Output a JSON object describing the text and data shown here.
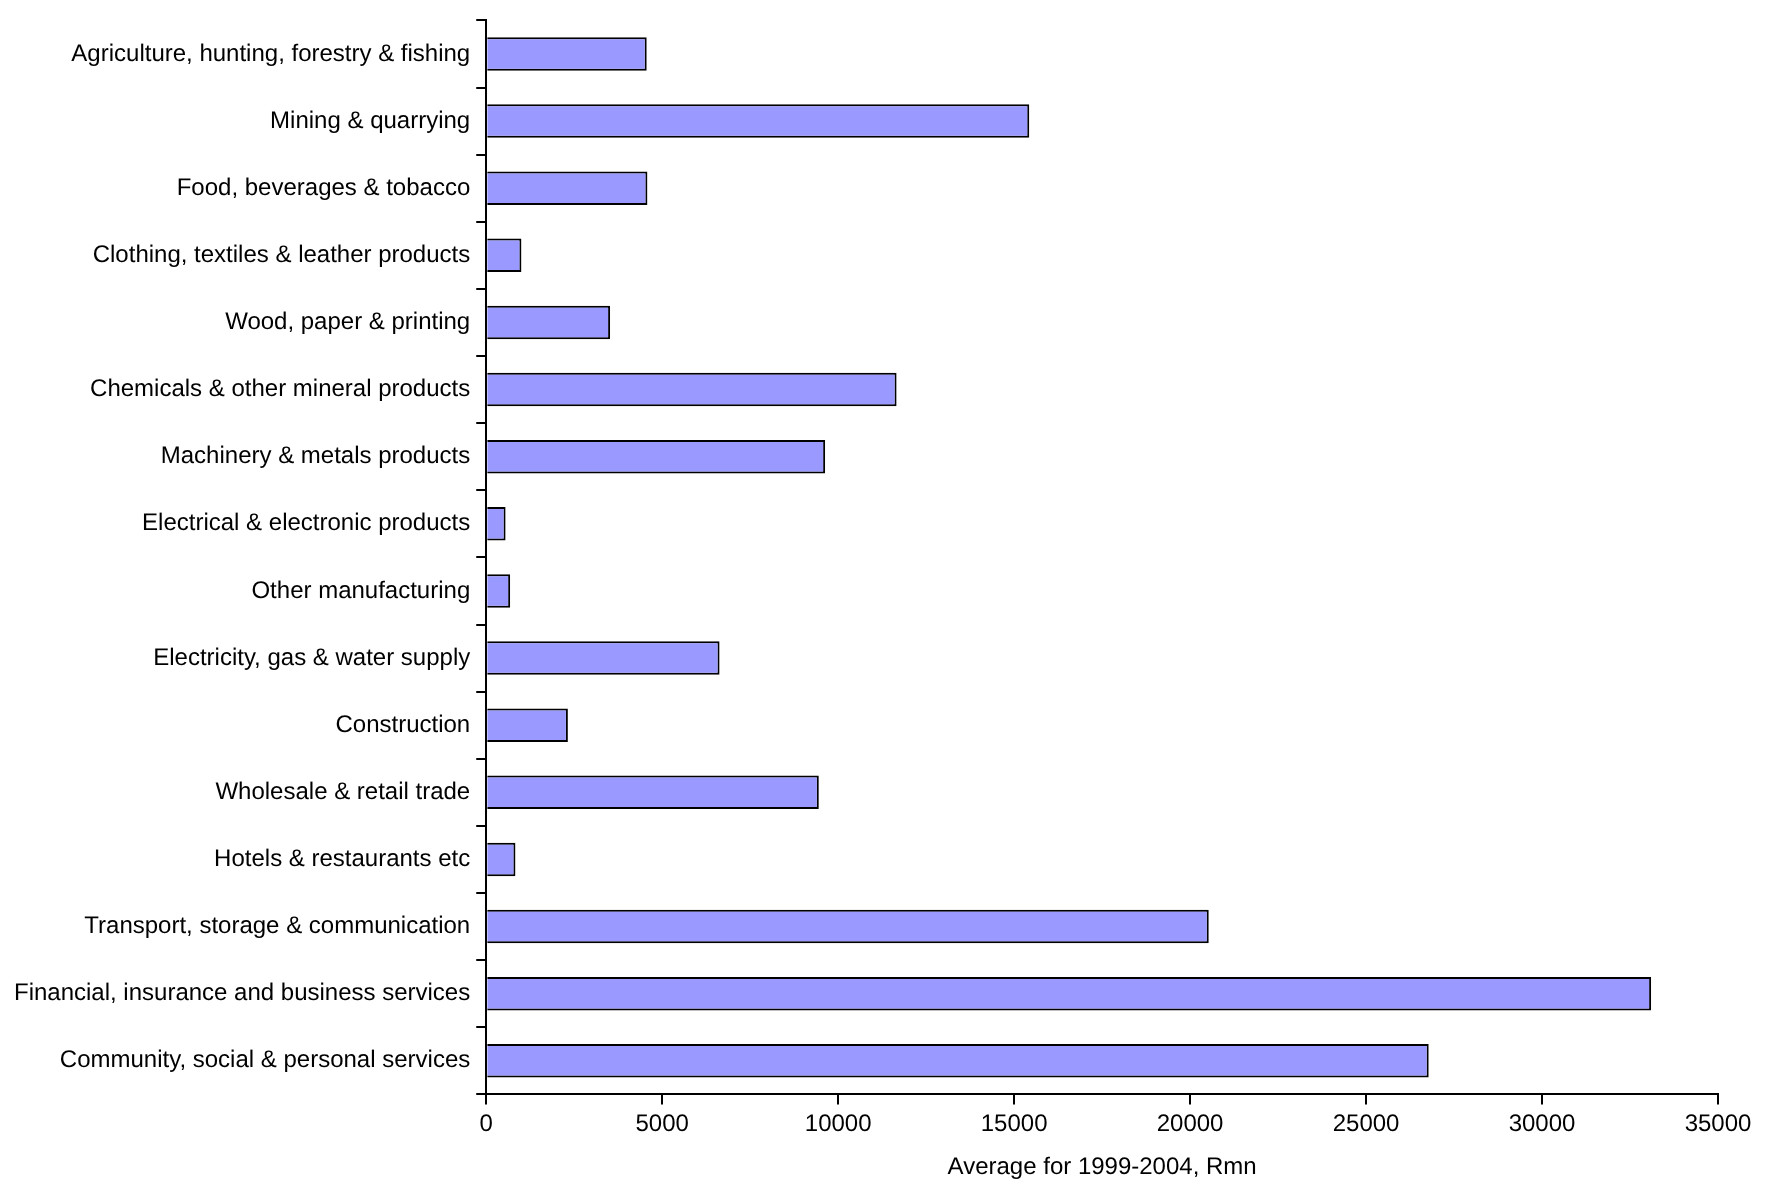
{
  "chart_data": {
    "type": "bar",
    "orientation": "horizontal",
    "xlabel": "Average for 1999-2004, Rmn",
    "categories": [
      "Agriculture, hunting, forestry & fishing",
      "Mining & quarrying",
      "Food, beverages & tobacco",
      "Clothing, textiles & leather products",
      "Wood, paper & printing",
      "Chemicals & other mineral products",
      "Machinery & metals products",
      "Electrical & electronic products",
      "Other manufacturing",
      "Electricity, gas & water supply",
      "Construction",
      "Wholesale & retail trade",
      "Hotels & restaurants etc",
      "Transport, storage & communication",
      "Financial, insurance and business services",
      "Community, social & personal services"
    ],
    "values": [
      4560,
      15430,
      4580,
      1000,
      3520,
      11660,
      9630,
      550,
      680,
      6630,
      2320,
      9450,
      830,
      20530,
      33100,
      26780
    ],
    "color": "#9999ff",
    "xlim": [
      0,
      35000
    ],
    "xticks": [
      0,
      5000,
      10000,
      15000,
      20000,
      25000,
      30000,
      35000
    ],
    "grid": false,
    "legend": false
  }
}
